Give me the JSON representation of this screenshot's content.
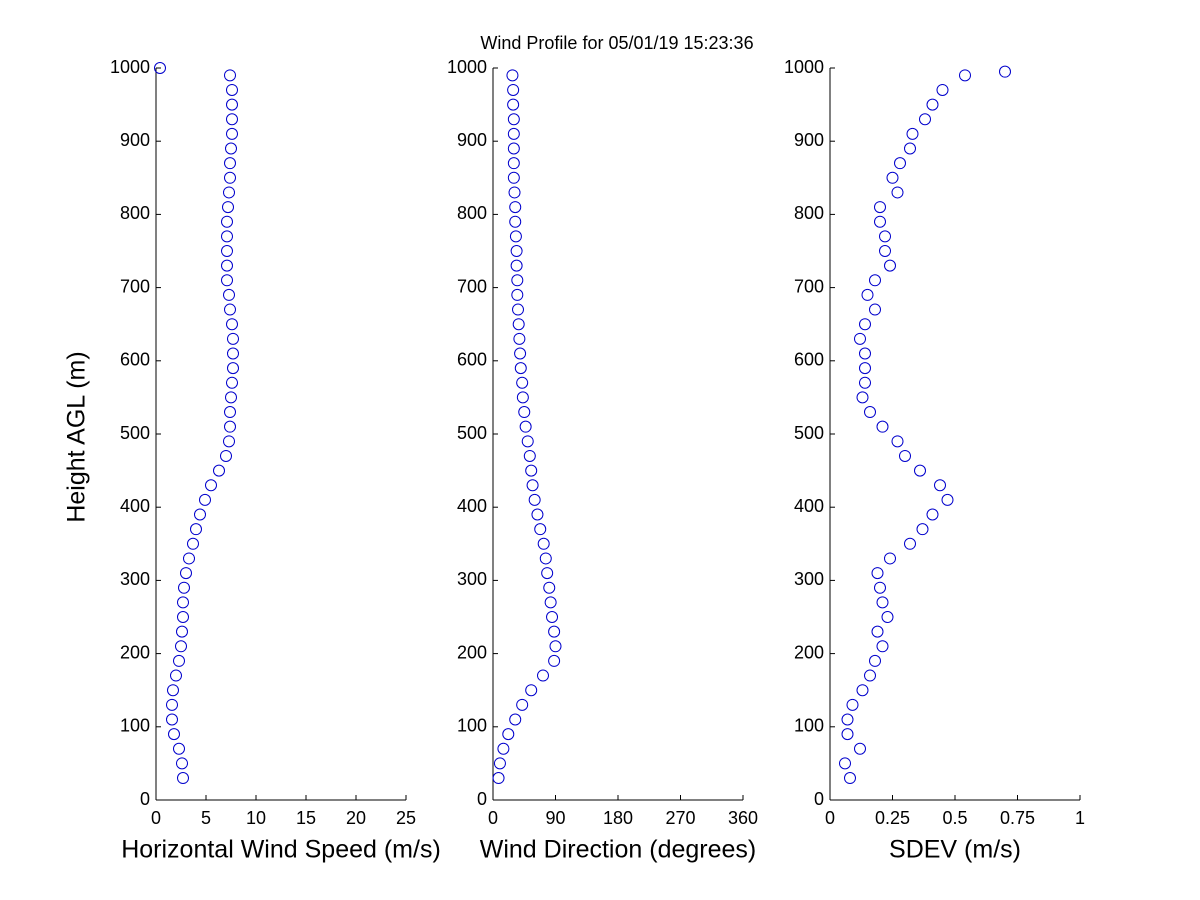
{
  "chart_data": [
    {
      "type": "scatter",
      "title": "Wind Profile for  05/01/19 15:23:36",
      "ylabel": "Height AGL (m)",
      "xlabel": "Horizontal Wind Speed (m/s)",
      "color": "#0000cc",
      "xlim": [
        0,
        25
      ],
      "xticks": [
        0,
        5,
        10,
        15,
        20,
        25
      ],
      "ylim": [
        0,
        1000
      ],
      "yticks": [
        0,
        100,
        200,
        300,
        400,
        500,
        600,
        700,
        800,
        900,
        1000
      ],
      "x": [
        2.7,
        2.6,
        2.3,
        1.8,
        1.6,
        1.6,
        1.7,
        2.0,
        2.3,
        2.5,
        2.6,
        2.7,
        2.7,
        2.8,
        3.0,
        3.3,
        3.7,
        4.0,
        4.4,
        4.9,
        5.5,
        6.3,
        7.0,
        7.3,
        7.4,
        7.4,
        7.5,
        7.6,
        7.7,
        7.7,
        7.7,
        7.6,
        7.4,
        7.3,
        7.1,
        7.1,
        7.1,
        7.1,
        7.1,
        7.2,
        7.3,
        7.4,
        7.4,
        7.5,
        7.6,
        7.6,
        7.6,
        7.6,
        7.4,
        0.4
      ],
      "y": [
        30,
        50,
        70,
        90,
        110,
        130,
        150,
        170,
        190,
        210,
        230,
        250,
        270,
        290,
        310,
        330,
        350,
        370,
        390,
        410,
        430,
        450,
        470,
        490,
        510,
        530,
        550,
        570,
        590,
        610,
        630,
        650,
        670,
        690,
        710,
        730,
        750,
        770,
        790,
        810,
        830,
        850,
        870,
        890,
        910,
        930,
        950,
        970,
        990,
        1000
      ]
    },
    {
      "type": "scatter",
      "xlabel": "Wind Direction (degrees)",
      "color": "#0000cc",
      "xlim": [
        0,
        360
      ],
      "xticks": [
        0,
        90,
        180,
        270,
        360
      ],
      "ylim": [
        0,
        1000
      ],
      "yticks": [
        0,
        100,
        200,
        300,
        400,
        500,
        600,
        700,
        800,
        900,
        1000
      ],
      "x": [
        8,
        10,
        15,
        22,
        32,
        42,
        55,
        72,
        88,
        90,
        88,
        85,
        83,
        81,
        78,
        76,
        73,
        68,
        64,
        60,
        57,
        55,
        53,
        50,
        47,
        45,
        43,
        42,
        40,
        39,
        38,
        37,
        36,
        35,
        35,
        34,
        34,
        33,
        32,
        32,
        31,
        30,
        30,
        30,
        30,
        30,
        29,
        29,
        28
      ],
      "y": [
        30,
        50,
        70,
        90,
        110,
        130,
        150,
        170,
        190,
        210,
        230,
        250,
        270,
        290,
        310,
        330,
        350,
        370,
        390,
        410,
        430,
        450,
        470,
        490,
        510,
        530,
        550,
        570,
        590,
        610,
        630,
        650,
        670,
        690,
        710,
        730,
        750,
        770,
        790,
        810,
        830,
        850,
        870,
        890,
        910,
        930,
        950,
        970,
        990
      ]
    },
    {
      "type": "scatter",
      "xlabel": "SDEV  (m/s)",
      "color": "#0000cc",
      "xlim": [
        0,
        1
      ],
      "xticks": [
        0,
        0.25,
        0.5,
        0.75,
        1
      ],
      "ylim": [
        0,
        1000
      ],
      "yticks": [
        0,
        100,
        200,
        300,
        400,
        500,
        600,
        700,
        800,
        900,
        1000
      ],
      "x": [
        0.08,
        0.06,
        0.12,
        0.07,
        0.07,
        0.09,
        0.13,
        0.16,
        0.18,
        0.21,
        0.19,
        0.23,
        0.21,
        0.2,
        0.19,
        0.24,
        0.32,
        0.37,
        0.41,
        0.47,
        0.44,
        0.36,
        0.3,
        0.27,
        0.21,
        0.16,
        0.13,
        0.14,
        0.14,
        0.14,
        0.12,
        0.14,
        0.18,
        0.15,
        0.18,
        0.24,
        0.22,
        0.22,
        0.2,
        0.2,
        0.27,
        0.25,
        0.28,
        0.32,
        0.33,
        0.38,
        0.41,
        0.45,
        0.54,
        0.7
      ],
      "y": [
        30,
        50,
        70,
        90,
        110,
        130,
        150,
        170,
        190,
        210,
        230,
        250,
        270,
        290,
        310,
        330,
        350,
        370,
        390,
        410,
        430,
        450,
        470,
        490,
        510,
        530,
        550,
        570,
        590,
        610,
        630,
        650,
        670,
        690,
        710,
        730,
        750,
        770,
        790,
        810,
        830,
        850,
        870,
        890,
        910,
        930,
        950,
        970,
        990,
        995
      ]
    }
  ]
}
